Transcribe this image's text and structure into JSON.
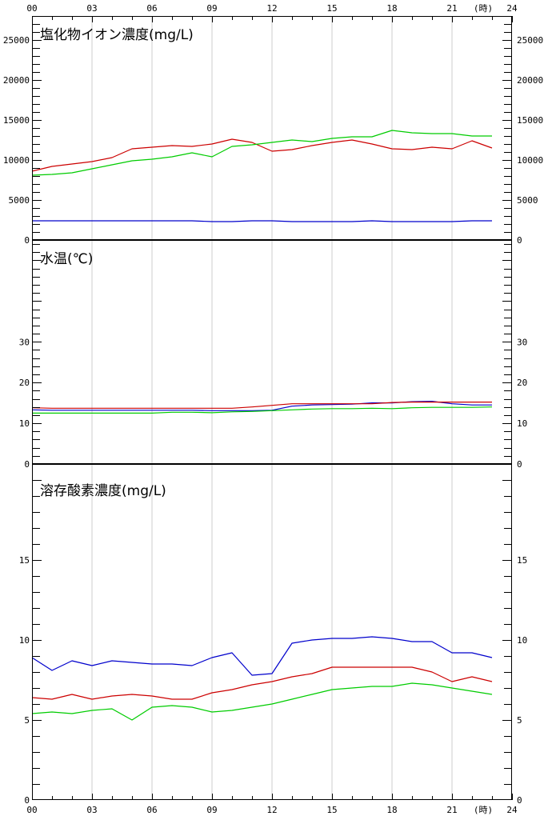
{
  "x_axis": {
    "tick_labels": [
      "00",
      "03",
      "06",
      "09",
      "12",
      "15",
      "18",
      "21",
      "24"
    ],
    "unit_label": "(時)"
  },
  "colors": {
    "blue": "#0000cc",
    "red": "#cc0000",
    "green": "#00cc00",
    "grid": "#cccccc",
    "axis": "#000000"
  },
  "chart_data": [
    {
      "type": "line",
      "title": "塩化物イオン濃度(mg/L)",
      "ylim": [
        0,
        28000
      ],
      "ytick_labels": [
        "0",
        "5000",
        "10000",
        "15000",
        "20000",
        "25000"
      ],
      "x": [
        0,
        1,
        2,
        3,
        4,
        5,
        6,
        7,
        8,
        9,
        10,
        11,
        12,
        13,
        14,
        15,
        16,
        17,
        18,
        19,
        20,
        21,
        22,
        23
      ],
      "series": [
        {
          "color": "#0000cc",
          "values": [
            2400,
            2400,
            2400,
            2400,
            2400,
            2400,
            2400,
            2400,
            2400,
            2300,
            2300,
            2400,
            2400,
            2300,
            2300,
            2300,
            2300,
            2400,
            2300,
            2300,
            2300,
            2300,
            2400,
            2400
          ]
        },
        {
          "color": "#cc0000",
          "values": [
            8600,
            9200,
            9500,
            9800,
            10300,
            11400,
            11600,
            11800,
            11700,
            12000,
            12600,
            12200,
            11100,
            11300,
            11800,
            12200,
            12500,
            12000,
            11400,
            11300,
            11600,
            11400,
            12400,
            11500
          ]
        },
        {
          "color": "#00cc00",
          "values": [
            8100,
            8200,
            8400,
            8900,
            9400,
            9900,
            10100,
            10400,
            10900,
            10400,
            11700,
            11900,
            12200,
            12500,
            12300,
            12700,
            12900,
            12900,
            13700,
            13400,
            13300,
            13300,
            13000,
            13000
          ]
        }
      ]
    },
    {
      "type": "line",
      "title": "水温(℃)",
      "ylim": [
        0,
        55
      ],
      "ytick_labels": [
        "0",
        "10",
        "20",
        "30"
      ],
      "x": [
        0,
        1,
        2,
        3,
        4,
        5,
        6,
        7,
        8,
        9,
        10,
        11,
        12,
        13,
        14,
        15,
        16,
        17,
        18,
        19,
        20,
        21,
        22,
        23
      ],
      "series": [
        {
          "color": "#0000cc",
          "values": [
            13.3,
            13.2,
            13.2,
            13.2,
            13.2,
            13.2,
            13.2,
            13.2,
            13.2,
            13.1,
            13.1,
            13.1,
            13.2,
            14.2,
            14.5,
            14.6,
            14.7,
            15.0,
            15.0,
            15.3,
            15.4,
            14.8,
            14.5,
            14.5
          ]
        },
        {
          "color": "#cc0000",
          "values": [
            13.8,
            13.7,
            13.7,
            13.7,
            13.7,
            13.7,
            13.7,
            13.7,
            13.7,
            13.7,
            13.7,
            14.0,
            14.4,
            14.8,
            14.8,
            14.8,
            14.8,
            14.8,
            15.1,
            15.2,
            15.2,
            15.2,
            15.2,
            15.2
          ]
        },
        {
          "color": "#00cc00",
          "values": [
            12.5,
            12.5,
            12.5,
            12.5,
            12.5,
            12.5,
            12.5,
            12.7,
            12.7,
            12.6,
            12.8,
            12.9,
            13.1,
            13.3,
            13.5,
            13.6,
            13.6,
            13.7,
            13.6,
            13.8,
            13.9,
            13.9,
            13.9,
            14.0
          ]
        }
      ]
    },
    {
      "type": "line",
      "title": "溶存酸素濃度(mg/L)",
      "ylim": [
        0,
        21
      ],
      "ytick_labels": [
        "0",
        "5",
        "10",
        "15"
      ],
      "x": [
        0,
        1,
        2,
        3,
        4,
        5,
        6,
        7,
        8,
        9,
        10,
        11,
        12,
        13,
        14,
        15,
        16,
        17,
        18,
        19,
        20,
        21,
        22,
        23
      ],
      "series": [
        {
          "color": "#0000cc",
          "values": [
            8.9,
            8.1,
            8.7,
            8.4,
            8.7,
            8.6,
            8.5,
            8.5,
            8.4,
            8.9,
            9.2,
            7.8,
            7.9,
            9.8,
            10.0,
            10.1,
            10.1,
            10.2,
            10.1,
            9.9,
            9.9,
            9.2,
            9.2,
            8.9
          ]
        },
        {
          "color": "#cc0000",
          "values": [
            6.4,
            6.3,
            6.6,
            6.3,
            6.5,
            6.6,
            6.5,
            6.3,
            6.3,
            6.7,
            6.9,
            7.2,
            7.4,
            7.7,
            7.9,
            8.3,
            8.3,
            8.3,
            8.3,
            8.3,
            8.0,
            7.4,
            7.7,
            7.4
          ]
        },
        {
          "color": "#00cc00",
          "values": [
            5.4,
            5.5,
            5.4,
            5.6,
            5.7,
            5.0,
            5.8,
            5.9,
            5.8,
            5.5,
            5.6,
            5.8,
            6.0,
            6.3,
            6.6,
            6.9,
            7.0,
            7.1,
            7.1,
            7.3,
            7.2,
            7.0,
            6.8,
            6.6
          ]
        }
      ]
    }
  ]
}
